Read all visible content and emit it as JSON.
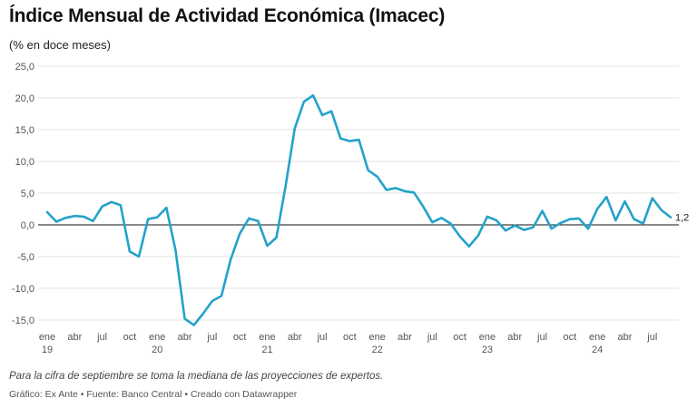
{
  "title": "Índice Mensual de Actividad Económica (Imacec)",
  "subtitle": "(% en doce meses)",
  "note": "Para la cifra de septiembre se toma la mediana de las proyecciones de expertos.",
  "footer": "Gráfico: Ex Ante • Fuente: Banco Central • Creado con Datawrapper",
  "colors": {
    "line": "#24a2c9",
    "grid": "#e3e3e3",
    "zero": "#111111"
  },
  "chart_data": {
    "type": "line",
    "title": "Índice Mensual de Actividad Económica (Imacec)",
    "ylabel": "(% en doce meses)",
    "ylim": [
      -15,
      25
    ],
    "y_ticks": [
      "25,0",
      "20,0",
      "15,0",
      "10,0",
      "5,0",
      "0,0",
      "-5,0",
      "-10,0",
      "-15,0"
    ],
    "y_tick_values": [
      25,
      20,
      15,
      10,
      5,
      0,
      -5,
      -10,
      -15
    ],
    "grid": true,
    "x_ticks": [
      {
        "month": "ene",
        "year": "19",
        "index": 0
      },
      {
        "month": "abr",
        "year": "",
        "index": 3
      },
      {
        "month": "jul",
        "year": "",
        "index": 6
      },
      {
        "month": "oct",
        "year": "",
        "index": 9
      },
      {
        "month": "ene",
        "year": "20",
        "index": 12
      },
      {
        "month": "abr",
        "year": "",
        "index": 15
      },
      {
        "month": "jul",
        "year": "",
        "index": 18
      },
      {
        "month": "oct",
        "year": "",
        "index": 21
      },
      {
        "month": "ene",
        "year": "21",
        "index": 24
      },
      {
        "month": "abr",
        "year": "",
        "index": 27
      },
      {
        "month": "jul",
        "year": "",
        "index": 30
      },
      {
        "month": "oct",
        "year": "",
        "index": 33
      },
      {
        "month": "ene",
        "year": "22",
        "index": 36
      },
      {
        "month": "abr",
        "year": "",
        "index": 39
      },
      {
        "month": "jul",
        "year": "",
        "index": 42
      },
      {
        "month": "oct",
        "year": "",
        "index": 45
      },
      {
        "month": "ene",
        "year": "23",
        "index": 48
      },
      {
        "month": "abr",
        "year": "",
        "index": 51
      },
      {
        "month": "jul",
        "year": "",
        "index": 54
      },
      {
        "month": "oct",
        "year": "",
        "index": 57
      },
      {
        "month": "ene",
        "year": "24",
        "index": 60
      },
      {
        "month": "abr",
        "year": "",
        "index": 63
      },
      {
        "month": "jul",
        "year": "",
        "index": 66
      }
    ],
    "x_start": "2019-01",
    "x_end": "2024-09",
    "series": [
      {
        "values": [
          2.0,
          0.5,
          1.1,
          1.4,
          1.3,
          0.6,
          2.9,
          3.6,
          3.1,
          -4.2,
          -5.0,
          0.9,
          1.2,
          2.7,
          -4.0,
          -14.8,
          -15.8,
          -14.0,
          -12.0,
          -11.2,
          -5.5,
          -1.4,
          1.0,
          0.6,
          -3.3,
          -2.0,
          6.1,
          15.2,
          19.4,
          20.4,
          17.3,
          17.9,
          13.6,
          13.2,
          13.4,
          8.6,
          7.6,
          5.5,
          5.8,
          5.3,
          5.1,
          2.9,
          0.4,
          1.1,
          0.2,
          -1.8,
          -3.4,
          -1.7,
          1.3,
          0.7,
          -0.9,
          -0.1,
          -0.8,
          -0.4,
          2.2,
          -0.6,
          0.3,
          0.9,
          1.0,
          -0.6,
          2.5,
          4.4,
          0.7,
          3.7,
          0.9,
          0.2,
          4.2,
          2.3,
          1.2
        ]
      }
    ],
    "end_label": "1,2"
  }
}
